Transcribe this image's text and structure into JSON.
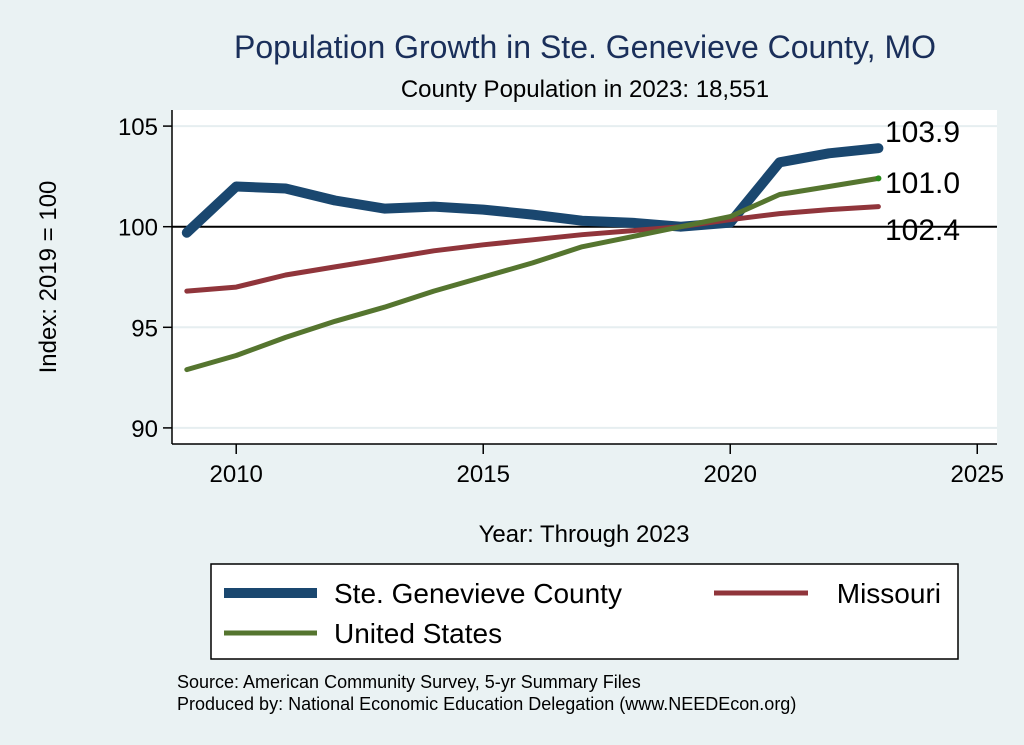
{
  "chart_data": {
    "type": "line",
    "title": "Population Growth in Ste. Genevieve County, MO",
    "subtitle": "County Population in 2023: 18,551",
    "xlabel": "Year: Through 2023",
    "ylabel": "Index: 2019 = 100",
    "xlim": [
      2008.7,
      2025.4
    ],
    "ylim": [
      89.2,
      105.8
    ],
    "xticks": [
      2010,
      2015,
      2020,
      2025
    ],
    "xtick_labels": [
      "2010",
      "2015",
      "2020",
      "2025"
    ],
    "yticks": [
      90,
      95,
      100,
      105
    ],
    "ytick_labels": [
      "90",
      "95",
      "100",
      "105"
    ],
    "reference_line": 100,
    "grid": true,
    "x": [
      2009,
      2010,
      2011,
      2012,
      2013,
      2014,
      2015,
      2016,
      2017,
      2018,
      2019,
      2020,
      2021,
      2022,
      2023
    ],
    "series": [
      {
        "name": "Ste. Genevieve  County",
        "color": "#1a476f",
        "values": [
          99.7,
          102.0,
          101.9,
          101.3,
          100.9,
          101.0,
          100.85,
          100.6,
          100.3,
          100.2,
          100.0,
          100.2,
          103.2,
          103.65,
          103.9
        ],
        "end_label": "103.9"
      },
      {
        "name": "Missouri",
        "color": "#90353b",
        "values": [
          96.8,
          97.0,
          97.6,
          98.0,
          98.4,
          98.8,
          99.1,
          99.35,
          99.6,
          99.8,
          100.0,
          100.35,
          100.65,
          100.85,
          101.0
        ],
        "end_label": "101.0"
      },
      {
        "name": "United States",
        "color": "#55752f",
        "values": [
          92.9,
          93.6,
          94.5,
          95.3,
          96.0,
          96.8,
          97.5,
          98.2,
          99.0,
          99.5,
          100.0,
          100.5,
          101.6,
          102.0,
          102.4
        ],
        "end_label": "102.4"
      }
    ],
    "legend": {
      "placement": "bottom",
      "entries": [
        "Ste. Genevieve  County",
        "Missouri",
        "United States"
      ]
    },
    "notes": [
      "Source: American Community Survey, 5-yr Summary Files",
      "Produced by: National Economic Education Delegation (www.NEEDEcon.org)"
    ]
  },
  "colors": {
    "background": "#eaf2f3",
    "plot_background": "#ffffff",
    "title": "#1a2f5a"
  }
}
